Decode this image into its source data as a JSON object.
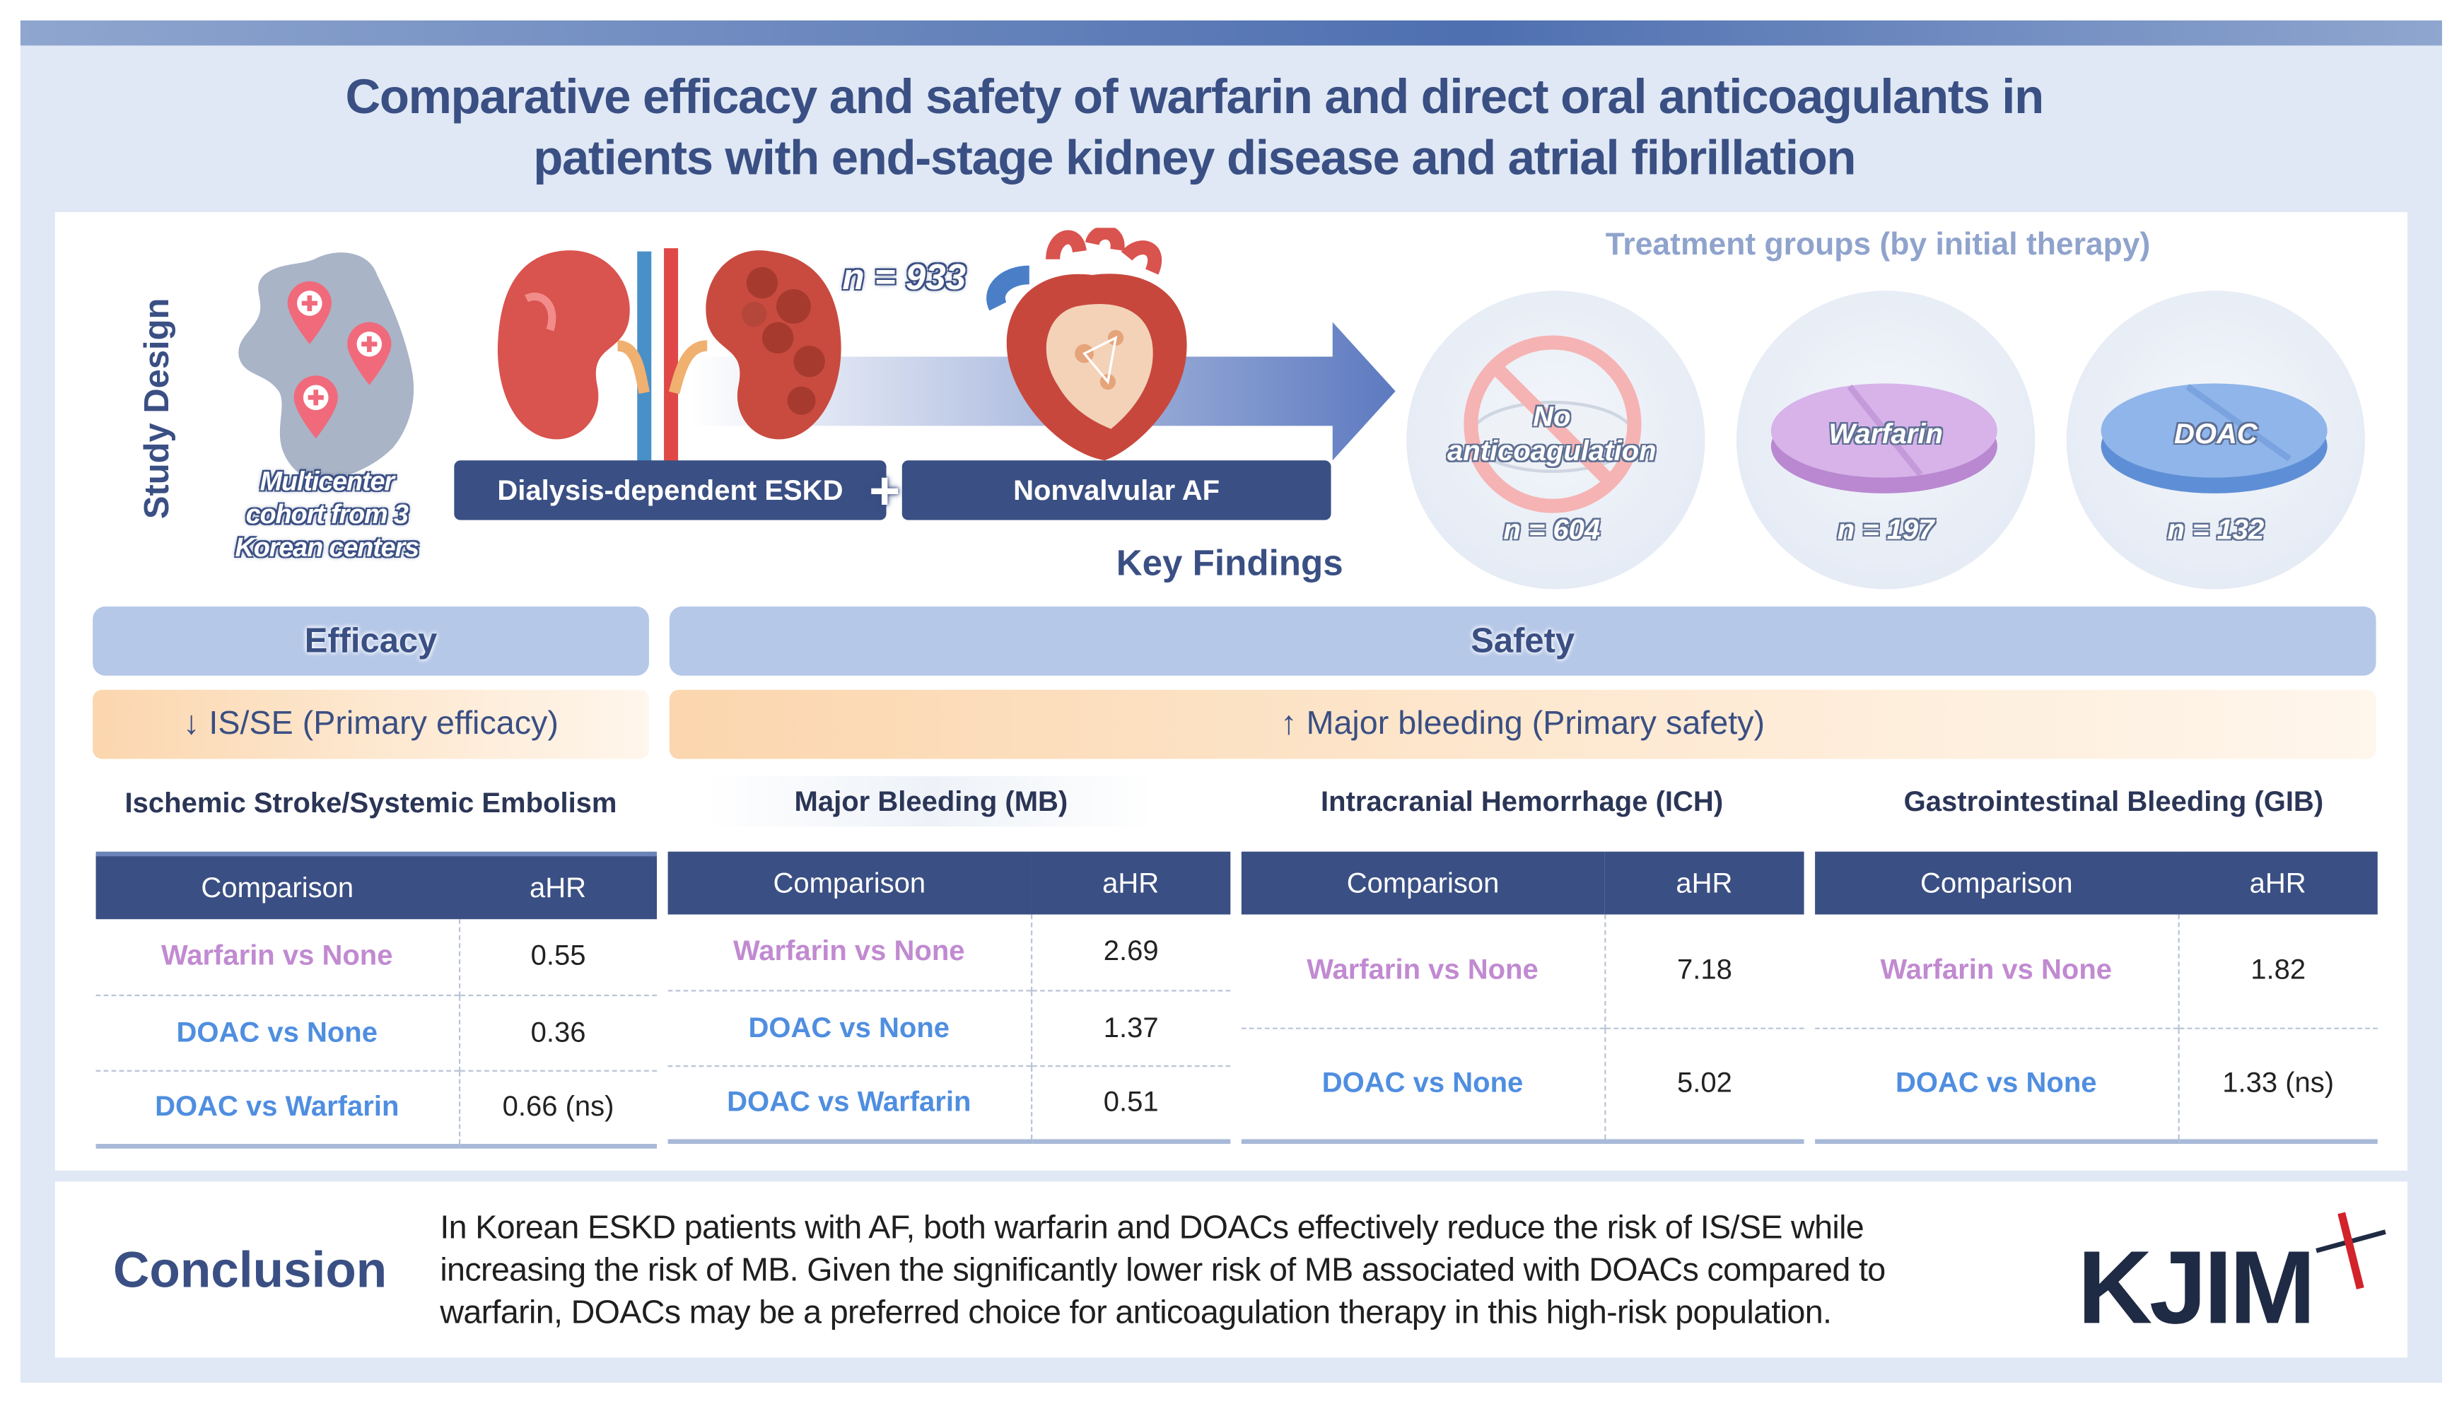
{
  "title": {
    "line1": "Comparative efficacy and safety of warfarin and direct oral anticoagulants in",
    "line2": "patients with end-stage kidney disease and atrial fibrillation"
  },
  "study_design": {
    "label": "Study Design",
    "map_label": [
      "Multicenter",
      "cohort from 3",
      "Korean centers"
    ],
    "n_total": "n = 933",
    "eskd_label": "Dialysis-dependent ESKD",
    "plus": "+",
    "af_label": "Nonvalvular AF"
  },
  "treatment_groups": {
    "heading": "Treatment groups (by initial therapy)",
    "groups": [
      {
        "label_lines": [
          "No",
          "anticoagulation"
        ],
        "n": "n = 604"
      },
      {
        "label_lines": [
          "Warfarin"
        ],
        "n": "n = 197"
      },
      {
        "label_lines": [
          "DOAC"
        ],
        "n": "n = 132"
      }
    ]
  },
  "key_findings": "Key Findings",
  "efficacy": {
    "header": "Efficacy",
    "outcome": "↓ IS/SE (Primary efficacy)",
    "tables": [
      {
        "title": "Ischemic Stroke/Systemic Embolism",
        "col1": "Comparison",
        "col2": "aHR",
        "rows": [
          {
            "comparison": "Warfarin vs None",
            "ahr": "0.55",
            "color": "pink"
          },
          {
            "comparison": "DOAC vs None",
            "ahr": "0.36",
            "color": "blue"
          },
          {
            "comparison": "DOAC vs Warfarin",
            "ahr": "0.66 (ns)",
            "color": "blue"
          }
        ]
      }
    ]
  },
  "safety": {
    "header": "Safety",
    "outcome": "↑ Major bleeding (Primary safety)",
    "tables": [
      {
        "title": "Major Bleeding (MB)",
        "col1": "Comparison",
        "col2": "aHR",
        "rows": [
          {
            "comparison": "Warfarin vs None",
            "ahr": "2.69",
            "color": "pink"
          },
          {
            "comparison": "DOAC vs None",
            "ahr": "1.37",
            "color": "blue"
          },
          {
            "comparison": "DOAC vs Warfarin",
            "ahr": "0.51",
            "color": "blue"
          }
        ]
      },
      {
        "title": "Intracranial Hemorrhage (ICH)",
        "col1": "Comparison",
        "col2": "aHR",
        "rows": [
          {
            "comparison": "Warfarin vs None",
            "ahr": "7.18",
            "color": "pink"
          },
          {
            "comparison": "DOAC vs None",
            "ahr": "5.02",
            "color": "blue"
          }
        ]
      },
      {
        "title": "Gastrointestinal Bleeding (GIB)",
        "col1": "Comparison",
        "col2": "aHR",
        "rows": [
          {
            "comparison": "Warfarin vs None",
            "ahr": "1.82",
            "color": "pink"
          },
          {
            "comparison": "DOAC vs None",
            "ahr": "1.33 (ns)",
            "color": "blue"
          }
        ]
      }
    ]
  },
  "conclusion": {
    "label": "Conclusion",
    "lines": [
      "In Korean ESKD patients with AF, both warfarin and DOACs effectively reduce the risk of IS/SE while",
      "increasing the risk of MB. Given the significantly lower risk of MB associated with DOACs compared to",
      "warfarin, DOACs may be a preferred choice for anticoagulation therapy in this high-risk population."
    ]
  },
  "logo": "KJIM",
  "colors": {
    "navy": "#3a4f83",
    "warfarin_pink": "#c18ad1",
    "doac_blue": "#4f8ee0",
    "header_bar": "#b6c8e8",
    "orange_bar": "#fbd6ae"
  },
  "icons": [
    "korea-map-icon",
    "location-pin-icon",
    "kidney-icon",
    "heart-icon",
    "arrow-icon",
    "no-symbol-icon",
    "warfarin-pill-icon",
    "doac-pill-icon",
    "kjim-logo"
  ]
}
